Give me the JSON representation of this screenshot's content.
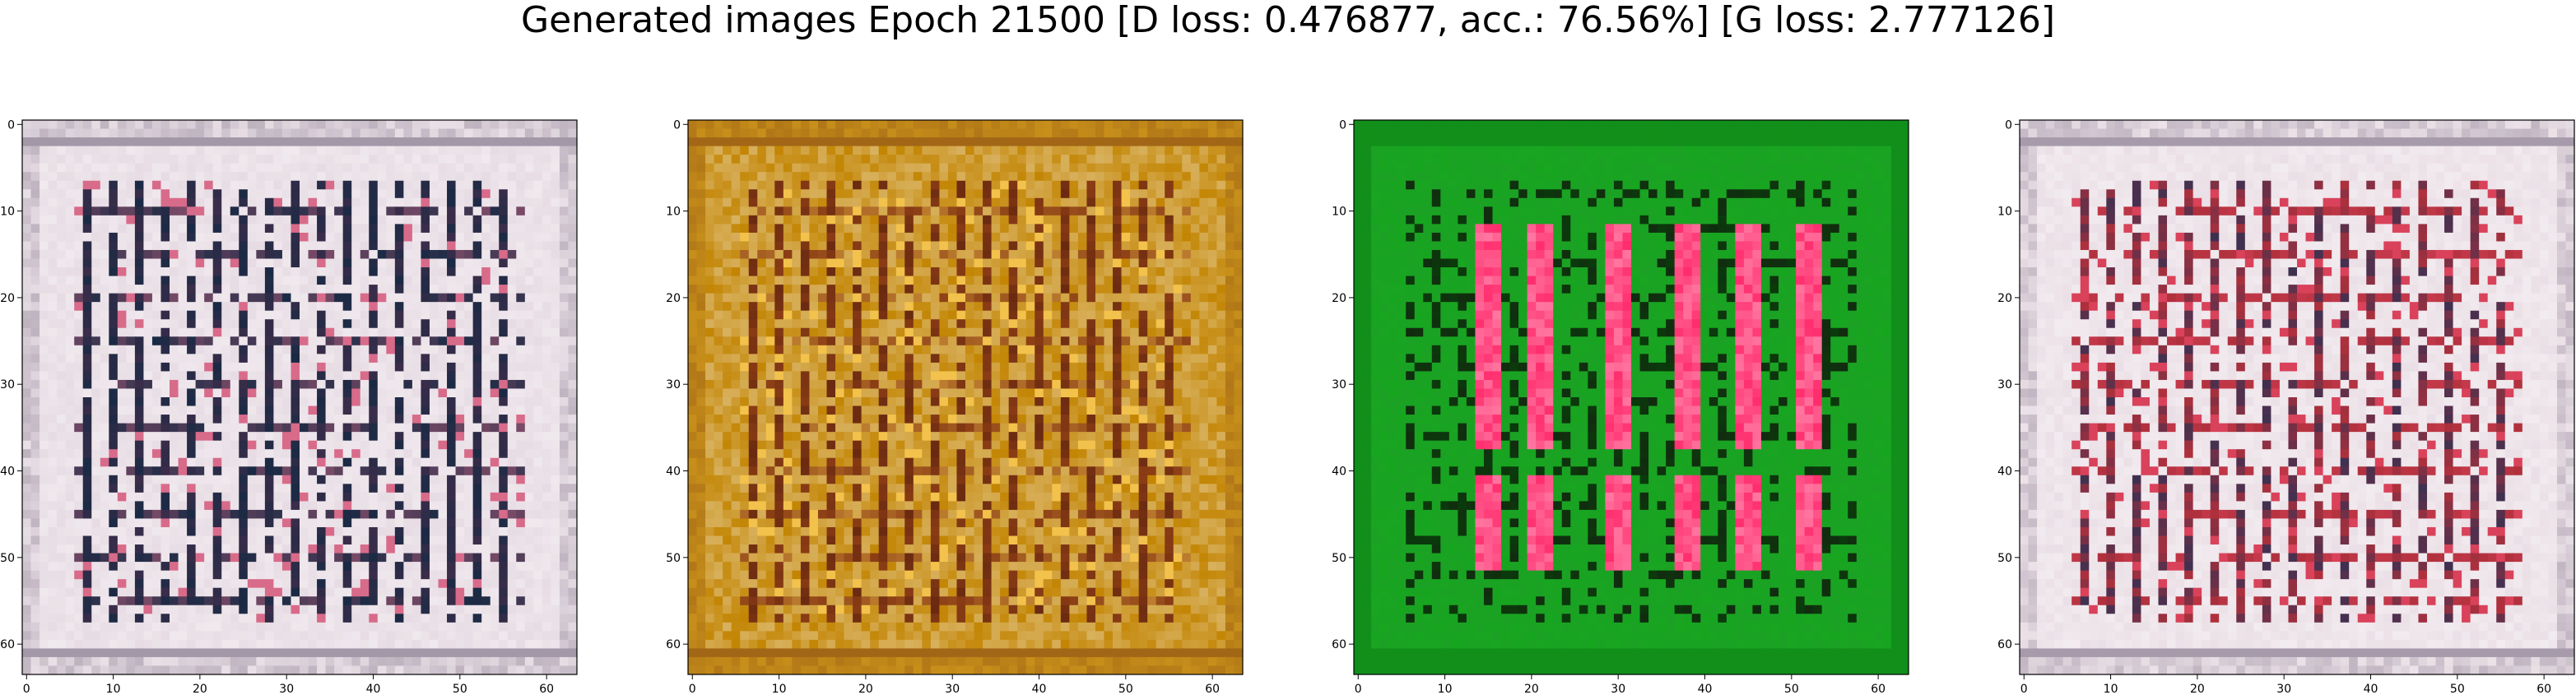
{
  "figure": {
    "title": "Generated images Epoch 21500 [D loss: 0.476877, acc.: 76.56%] [G loss: 2.777126]"
  },
  "chart_data": [
    {
      "type": "heatmap",
      "name": "generated-image-1",
      "palette": "light-lavender-grid",
      "colors": {
        "bg": "#e9dfe6",
        "line1": "#3b2d4a",
        "line2": "#1a2a44",
        "accent": "#d86b8a"
      },
      "xlim": [
        0,
        63
      ],
      "ylim": [
        63,
        0
      ],
      "x_ticks": [
        0,
        10,
        20,
        30,
        40,
        50,
        60
      ],
      "y_ticks": [
        0,
        10,
        20,
        30,
        40,
        50,
        60
      ]
    },
    {
      "type": "heatmap",
      "name": "generated-image-2",
      "palette": "golden-grid",
      "colors": {
        "bg": "#c8901a",
        "line1": "#6a2a10",
        "line2": "#8a3c14",
        "accent": "#f2c24c"
      },
      "xlim": [
        0,
        63
      ],
      "ylim": [
        63,
        0
      ],
      "x_ticks": [
        0,
        10,
        20,
        30,
        40,
        50,
        60
      ],
      "y_ticks": [
        0,
        10,
        20,
        30,
        40,
        50,
        60
      ]
    },
    {
      "type": "heatmap",
      "name": "generated-image-3",
      "palette": "green-with-pink-bars",
      "colors": {
        "bg": "#17a51f",
        "line1": "#0b3a0c",
        "line2": "#1a1a14",
        "accent": "#ff2d6e"
      },
      "xlim": [
        0,
        63
      ],
      "ylim": [
        63,
        0
      ],
      "x_ticks": [
        0,
        10,
        20,
        30,
        40,
        50,
        60
      ],
      "y_ticks": [
        0,
        10,
        20,
        30,
        40,
        50,
        60
      ]
    },
    {
      "type": "heatmap",
      "name": "generated-image-4",
      "palette": "light-lavender-grid-red",
      "colors": {
        "bg": "#ece2e8",
        "line1": "#3f3050",
        "line2": "#b0303c",
        "accent": "#d9425a"
      },
      "xlim": [
        0,
        63
      ],
      "ylim": [
        63,
        0
      ],
      "x_ticks": [
        0,
        10,
        20,
        30,
        40,
        50,
        60
      ],
      "y_ticks": [
        0,
        10,
        20,
        30,
        40,
        50,
        60
      ]
    }
  ]
}
